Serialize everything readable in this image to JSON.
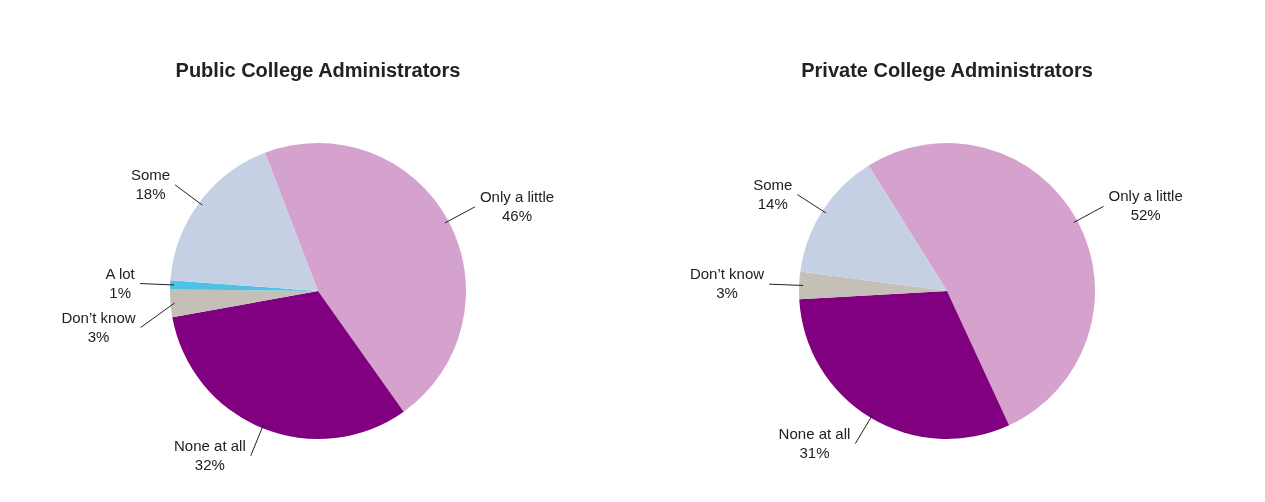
{
  "chart_data": [
    {
      "type": "pie",
      "title": "Public College Administrators",
      "categories": [
        "Only a little",
        "None at all",
        "Don’t know",
        "A lot",
        "Some"
      ],
      "values": [
        46,
        32,
        3,
        1,
        18
      ],
      "colors": [
        "#d4a2cc",
        "#800080",
        "#c4c0b8",
        "#4cc3e6",
        "#c6d0e4"
      ],
      "value_labels": [
        "46%",
        "32%",
        "3%",
        "1%",
        "18%"
      ],
      "legend": false
    },
    {
      "type": "pie",
      "title": "Private College Administrators",
      "categories": [
        "Only a little",
        "None at all",
        "Don’t know",
        "Some"
      ],
      "values": [
        52,
        31,
        3,
        14
      ],
      "colors": [
        "#d4a2cc",
        "#800080",
        "#c4c0b8",
        "#c6d0e4"
      ],
      "value_labels": [
        "52%",
        "31%",
        "3%",
        "14%"
      ],
      "legend": false
    }
  ]
}
